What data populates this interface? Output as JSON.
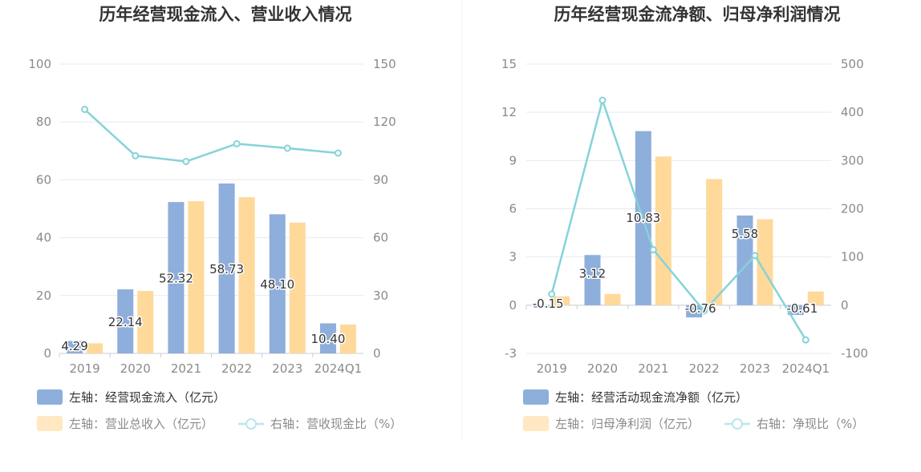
{
  "chart_data": [
    {
      "type": "bar",
      "title": "历年经营现金流入、营业收入情况",
      "categories": [
        "2019",
        "2020",
        "2021",
        "2022",
        "2023",
        "2024Q1"
      ],
      "left_axis": {
        "ylim": [
          0,
          100
        ],
        "ticks": [
          "0",
          "20",
          "40",
          "60",
          "80",
          "100"
        ],
        "tick_values": [
          0,
          20,
          40,
          60,
          80,
          100
        ]
      },
      "right_axis": {
        "ylim": [
          0,
          150
        ],
        "ticks": [
          "0",
          "30",
          "60",
          "90",
          "120",
          "150"
        ],
        "tick_values": [
          0,
          30,
          60,
          90,
          120,
          150
        ]
      },
      "series": [
        {
          "name": "经营现金流入（亿元）",
          "legend": "左轴：经营现金流入（亿元）",
          "kind": "bar",
          "axis": "left",
          "color": "#8eaedb",
          "values": [
            4.29,
            22.14,
            52.32,
            58.73,
            48.1,
            10.4
          ],
          "labels": [
            "4.29",
            "22.14",
            "52.32",
            "58.73",
            "48.10",
            "10.40"
          ]
        },
        {
          "name": "营业总收入（亿元）",
          "legend": "左轴：营业总收入（亿元）",
          "kind": "bar",
          "axis": "left",
          "color": "#ffd999",
          "values": [
            3.5,
            21.6,
            52.6,
            54.0,
            45.2,
            10.0
          ]
        },
        {
          "name": "营收现金比（%）",
          "legend": "右轴：营收现金比（%）",
          "kind": "line",
          "axis": "right",
          "color": "#85d3d9",
          "values": [
            126.5,
            102.5,
            99.5,
            108.7,
            106.4,
            103.9
          ]
        }
      ]
    },
    {
      "type": "bar",
      "title": "历年经营现金流净额、归母净利润情况",
      "categories": [
        "2019",
        "2020",
        "2021",
        "2022",
        "2023",
        "2024Q1"
      ],
      "left_axis": {
        "ylim": [
          -3,
          15
        ],
        "ticks": [
          "-3",
          "0",
          "3",
          "6",
          "9",
          "12",
          "15"
        ],
        "tick_values": [
          -3,
          0,
          3,
          6,
          9,
          12,
          15
        ]
      },
      "right_axis": {
        "ylim": [
          -100,
          500
        ],
        "ticks": [
          "-100",
          "0",
          "100",
          "200",
          "300",
          "400",
          "500"
        ],
        "tick_values": [
          -100,
          0,
          100,
          200,
          300,
          400,
          500
        ]
      },
      "series": [
        {
          "name": "经营活动现金流净额（亿元）",
          "legend": "左轴：经营活动现金流净额（亿元）",
          "kind": "bar",
          "axis": "left",
          "color": "#8eaedb",
          "values": [
            -0.15,
            3.12,
            10.83,
            -0.76,
            5.58,
            -0.61
          ],
          "labels": [
            "-0.15",
            "3.12",
            "10.83",
            "-0.76",
            "5.58",
            "-0.61"
          ]
        },
        {
          "name": "归母净利润（亿元）",
          "legend": "左轴：归母净利润（亿元）",
          "kind": "bar",
          "axis": "left",
          "color": "#ffd999",
          "values": [
            0.55,
            0.7,
            9.25,
            7.85,
            5.35,
            0.85
          ]
        },
        {
          "name": "净现比（%）",
          "legend": "右轴：净现比（%）",
          "kind": "line",
          "axis": "right",
          "color": "#85d3d9",
          "values": [
            23,
            425,
            115,
            -12,
            103,
            -72
          ]
        }
      ]
    }
  ]
}
